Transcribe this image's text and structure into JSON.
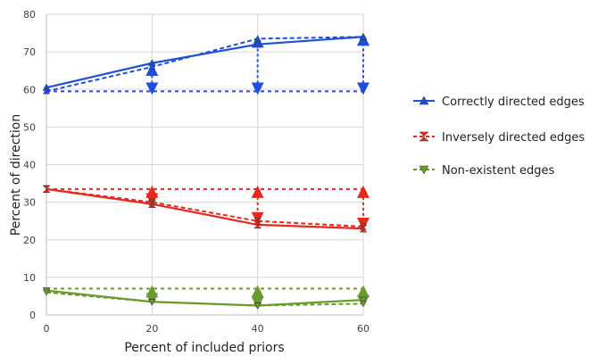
{
  "chart_data": {
    "type": "line",
    "title": "",
    "xlabel": "Percent of included priors",
    "ylabel": "Percent of direction",
    "x": [
      0,
      20,
      40,
      60
    ],
    "xlim": [
      0,
      60
    ],
    "ylim": [
      0,
      80
    ],
    "xticks": [
      "0",
      "20",
      "40",
      "60"
    ],
    "yticks": [
      "0",
      "10",
      "20",
      "30",
      "40",
      "50",
      "60",
      "70",
      "80"
    ],
    "grid": true,
    "legend_position": "right",
    "series": [
      {
        "name": "Correctly directed edges",
        "color": "#1f4fd8",
        "marker": "triangle-up",
        "values": [
          60.5,
          67,
          72,
          74
        ],
        "dashed_values": [
          59.5,
          66,
          73.5,
          74
        ],
        "baseline": 59.5
      },
      {
        "name": "Inversely directed edges",
        "color": "#e8281e",
        "marker": "hourglass",
        "values": [
          33.5,
          29.5,
          24,
          23
        ],
        "dashed_values": [
          33.5,
          30,
          25,
          23.5
        ],
        "baseline": 33.5
      },
      {
        "name": "Non-existent edges",
        "color": "#6a9a30",
        "marker": "triangle-down",
        "values": [
          6.5,
          3.5,
          2.5,
          4
        ],
        "dashed_values": [
          6,
          3.5,
          2.5,
          3
        ],
        "baseline": 7
      }
    ]
  }
}
